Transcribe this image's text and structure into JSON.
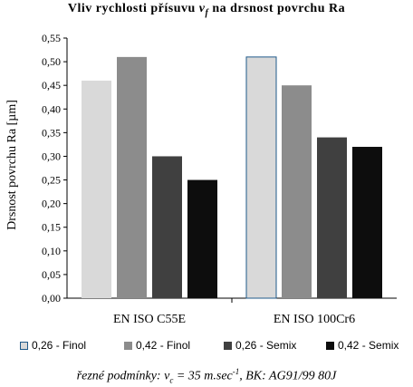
{
  "chart_data": {
    "type": "bar",
    "title_prefix": "Vliv rychlosti přísuvu ",
    "title_symbol": "v",
    "title_symbol_sub": "f",
    "title_suffix": " na drsnost povrchu Ra",
    "ylabel": "Drsnost povrchu Ra [µm]",
    "xlabel": "",
    "ylim": [
      0,
      0.55
    ],
    "yticks": [
      "0,00",
      "0,05",
      "0,10",
      "0,15",
      "0,20",
      "0,25",
      "0,30",
      "0,35",
      "0,40",
      "0,45",
      "0,50",
      "0,55"
    ],
    "categories": [
      "EN ISO C55E",
      "EN ISO 100Cr6"
    ],
    "series": [
      {
        "name": "0,26 - Finol",
        "values": [
          0.46,
          0.51
        ],
        "color": "#d9d9d9"
      },
      {
        "name": "0,42 - Finol",
        "values": [
          0.51,
          0.45
        ],
        "color": "#8c8c8c"
      },
      {
        "name": "0,26 - Semix",
        "values": [
          0.3,
          0.34
        ],
        "color": "#404040"
      },
      {
        "name": "0,42 - Semix",
        "values": [
          0.25,
          0.32
        ],
        "color": "#0d0d0d"
      }
    ],
    "highlight_bar_color": "#1f5a8a",
    "grid": false,
    "legend": "bottom"
  },
  "caption": {
    "prefix": "řezné podmínky: v",
    "vc_sub": "c",
    "middle": " = 35 m.sec",
    "exp": "-1",
    "suffix": ", BK: AG91/99 80J"
  }
}
